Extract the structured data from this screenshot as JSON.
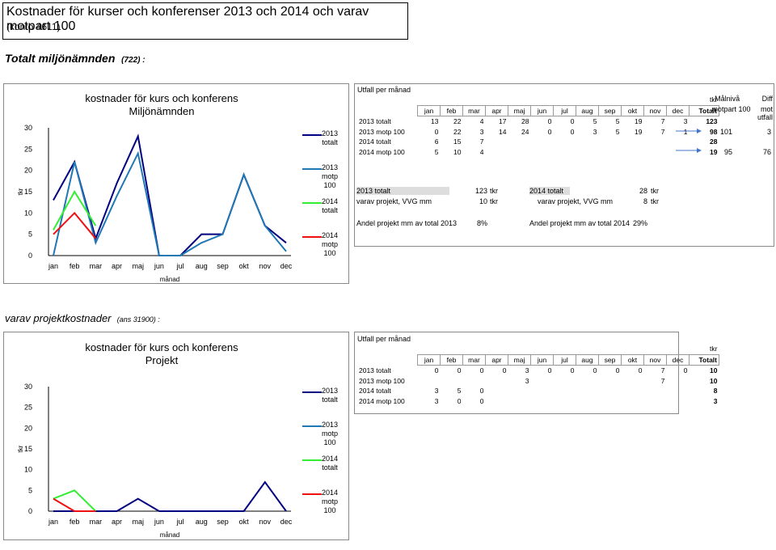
{
  "header": {
    "title": "Kostnader för kurser och konferenser 2013 och 2014  och varav motpart 100",
    "subtitle": "(konto 4611)"
  },
  "section1": {
    "title": "Totalt miljönämnden",
    "code": "(722) :"
  },
  "section2": {
    "title": "varav projektkostnader",
    "code": "(ans 31900) :"
  },
  "colors": {
    "s2013_totalt": "#000080",
    "s2013_motp": "#1f77b4",
    "s2014_totalt": "#33ee33",
    "s2014_motp": "#ee1111"
  },
  "chart_data": [
    {
      "type": "line",
      "title": "kostnader för kurs och konferens",
      "subtitle": "Miljönämnden",
      "xlabel": "månad",
      "ylabel": "tkr",
      "categories": [
        "jan",
        "feb",
        "mar",
        "apr",
        "maj",
        "jun",
        "jul",
        "aug",
        "sep",
        "okt",
        "nov",
        "dec"
      ],
      "yticks": [
        "0",
        "5",
        "10",
        "15",
        "20",
        "25",
        "30"
      ],
      "ylim": [
        0,
        30
      ],
      "series": [
        {
          "name": "2013 totalt",
          "values": [
            13,
            22,
            4,
            17,
            28,
            0,
            0,
            5,
            5,
            19,
            7,
            3
          ]
        },
        {
          "name": "2013 motp 100",
          "values": [
            0,
            22,
            3,
            14,
            24,
            0,
            0,
            3,
            5,
            19,
            7,
            1
          ]
        },
        {
          "name": "2014 totalt",
          "values": [
            6,
            15,
            7,
            null,
            null,
            null,
            null,
            null,
            null,
            null,
            null,
            null
          ]
        },
        {
          "name": "2014 motp 100",
          "values": [
            5,
            10,
            4,
            null,
            null,
            null,
            null,
            null,
            null,
            null,
            null,
            null
          ]
        }
      ]
    },
    {
      "type": "line",
      "title": "kostnader för kurs och konferens",
      "subtitle": "Projekt",
      "xlabel": "månad",
      "ylabel": "tkr",
      "categories": [
        "jan",
        "feb",
        "mar",
        "apr",
        "maj",
        "jun",
        "jul",
        "aug",
        "sep",
        "okt",
        "nov",
        "dec"
      ],
      "yticks": [
        "0",
        "5",
        "10",
        "15",
        "20",
        "25",
        "30"
      ],
      "ylim": [
        0,
        30
      ],
      "series": [
        {
          "name": "2013 totalt",
          "values": [
            0,
            0,
            0,
            0,
            3,
            0,
            0,
            0,
            0,
            0,
            7,
            0
          ]
        },
        {
          "name": "2013 motp 100",
          "values": [
            null,
            null,
            null,
            null,
            3,
            null,
            null,
            null,
            null,
            null,
            7,
            null
          ]
        },
        {
          "name": "2014 totalt",
          "values": [
            3,
            5,
            0,
            null,
            null,
            null,
            null,
            null,
            null,
            null,
            null,
            null
          ]
        },
        {
          "name": "2014 motp 100",
          "values": [
            3,
            0,
            0,
            null,
            null,
            null,
            null,
            null,
            null,
            null,
            null,
            null
          ]
        }
      ]
    }
  ],
  "table1": {
    "title": "Utfall per månad",
    "unit": "tkr",
    "extra_header": [
      "Målnivå",
      "Diff"
    ],
    "extra_header2": [
      "motpart 100",
      "mot utfall"
    ],
    "months": [
      "jan",
      "feb",
      "mar",
      "apr",
      "maj",
      "jun",
      "jul",
      "aug",
      "sep",
      "okt",
      "nov",
      "dec"
    ],
    "total_label": "Totalt",
    "rows": [
      {
        "label": "2013 totalt",
        "cells": [
          "13",
          "22",
          "4",
          "17",
          "28",
          "0",
          "0",
          "5",
          "5",
          "19",
          "7",
          "3"
        ],
        "total": "123",
        "target": "",
        "diff": ""
      },
      {
        "label": "2013 motp 100",
        "cells": [
          "0",
          "22",
          "3",
          "14",
          "24",
          "0",
          "0",
          "3",
          "5",
          "19",
          "7",
          "1"
        ],
        "total": "98",
        "target": "101",
        "diff": "3"
      },
      {
        "label": "2014 totalt",
        "cells": [
          "6",
          "15",
          "7",
          "",
          "",
          "",
          "",
          "",
          "",
          "",
          "",
          ""
        ],
        "total": "28",
        "target": "",
        "diff": ""
      },
      {
        "label": "2014 motp 100",
        "cells": [
          "5",
          "10",
          "4",
          "",
          "",
          "",
          "",
          "",
          "",
          "",
          "",
          ""
        ],
        "total": "19",
        "target": "95",
        "diff": "76"
      }
    ]
  },
  "summary": {
    "l1": "2013 totalt",
    "v1": "123",
    "u1": "tkr",
    "l2": "varav projekt, VVG mm",
    "v2": "10",
    "u2": "tkr",
    "l3": "2014 totalt",
    "v3": "28",
    "u3": "tkr",
    "l4": "varav projekt, VVG mm",
    "v4": "8",
    "u4": "tkr",
    "l5": "Andel projekt mm av total 2013",
    "v5": "8%",
    "l6": "Andel projekt mm av total 2014",
    "v6": "29%"
  },
  "table2": {
    "title": "Utfall per månad",
    "unit": "tkr",
    "months": [
      "jan",
      "feb",
      "mar",
      "apr",
      "maj",
      "jun",
      "jul",
      "aug",
      "sep",
      "okt",
      "nov",
      "dec"
    ],
    "total_label": "Totalt",
    "rows": [
      {
        "label": "2013 totalt",
        "cells": [
          "0",
          "0",
          "0",
          "0",
          "3",
          "0",
          "0",
          "0",
          "0",
          "0",
          "7",
          "0"
        ],
        "total": "10"
      },
      {
        "label": "2013 motp 100",
        "cells": [
          "",
          "",
          "",
          "",
          "3",
          "",
          "",
          "",
          "",
          "",
          "7",
          ""
        ],
        "total": "10"
      },
      {
        "label": "2014 totalt",
        "cells": [
          "3",
          "5",
          "0",
          "",
          "",
          "",
          "",
          "",
          "",
          "",
          "",
          ""
        ],
        "total": "8"
      },
      {
        "label": "2014 motp 100",
        "cells": [
          "3",
          "0",
          "0",
          "",
          "",
          "",
          "",
          "",
          "",
          "",
          "",
          ""
        ],
        "total": "3"
      }
    ]
  },
  "legend": [
    {
      "l1": "2013",
      "l2": "totalt"
    },
    {
      "l1": "2013",
      "l2": "motp",
      "l3": "100"
    },
    {
      "l1": "2014",
      "l2": "totalt"
    },
    {
      "l1": "2014",
      "l2": "motp",
      "l3": "100"
    }
  ]
}
